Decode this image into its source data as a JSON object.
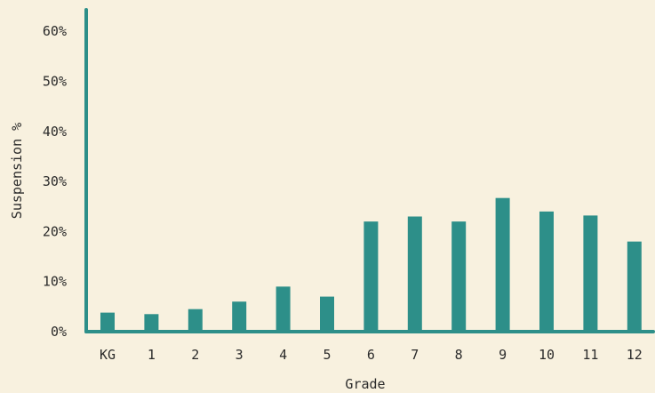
{
  "chart_data": {
    "type": "bar",
    "categories": [
      "KG",
      "1",
      "2",
      "3",
      "4",
      "5",
      "6",
      "7",
      "8",
      "9",
      "10",
      "11",
      "12"
    ],
    "values": [
      3.8,
      3.5,
      4.5,
      6.0,
      9.0,
      7.0,
      22.0,
      23.0,
      22.0,
      26.7,
      24.0,
      23.2,
      18.0
    ],
    "xlabel": "Grade",
    "ylabel": "Suspension %",
    "ylim": [
      0,
      63
    ],
    "yticks": [
      0,
      10,
      20,
      30,
      40,
      50,
      60
    ],
    "ytick_labels": [
      "0%",
      "10%",
      "20%",
      "30%",
      "40%",
      "50%",
      "60%"
    ],
    "grid": false,
    "legend": "none",
    "colors": {
      "bar": "#2d8f89",
      "axis": "#2d8f89",
      "background": "#f8f1df",
      "text": "#2b2b2b"
    }
  }
}
